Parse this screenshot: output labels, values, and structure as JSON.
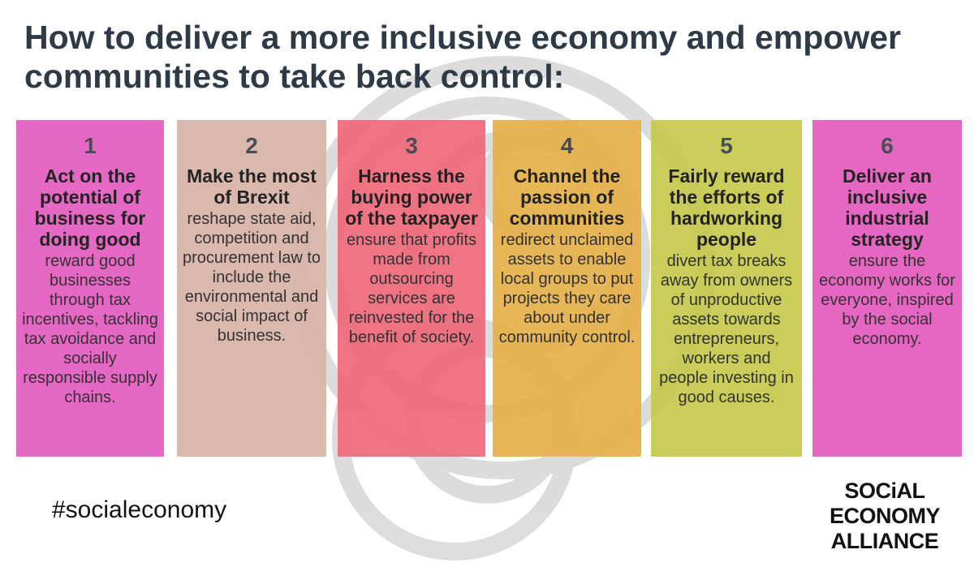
{
  "title": "How to deliver a more inclusive economy and empower communities to take back control:",
  "columns": [
    {
      "number": 1,
      "heading": "Act on the potential of business for doing good",
      "body": "reward good businesses through tax incentives, tackling tax avoidance and socially responsible supply chains.",
      "color": "#e35cbf"
    },
    {
      "number": 2,
      "heading": "Make the most of Brexit",
      "body": "reshape state aid, competition and procurement law to include the environmental and social impact of business.",
      "color": "#d8b3a8"
    },
    {
      "number": 3,
      "heading": "Harness the buying power of the taxpayer",
      "body": "ensure that profits made from outsourcing services are reinvested for the benefit of society.",
      "color": "#f0697a"
    },
    {
      "number": 4,
      "heading": "Channel the passion of communities",
      "body": "redirect unclaimed assets to enable local groups to put projects they care about under community control.",
      "color": "#e5b048"
    },
    {
      "number": 5,
      "heading": "Fairly reward the efforts of hardworking people",
      "body": "divert tax breaks away from owners of unproductive assets towards entrepreneurs, workers and people investing in good causes.",
      "color": "#c6c94c"
    },
    {
      "number": 6,
      "heading": "Deliver an inclusive industrial strategy",
      "body": "ensure the economy works for everyone, inspired by the social economy.",
      "color": "#e45bbd"
    }
  ],
  "hashtag": "#socialeconomy",
  "logo": [
    "SOCiAL",
    "ECONOMY",
    "ALLIANCE"
  ]
}
